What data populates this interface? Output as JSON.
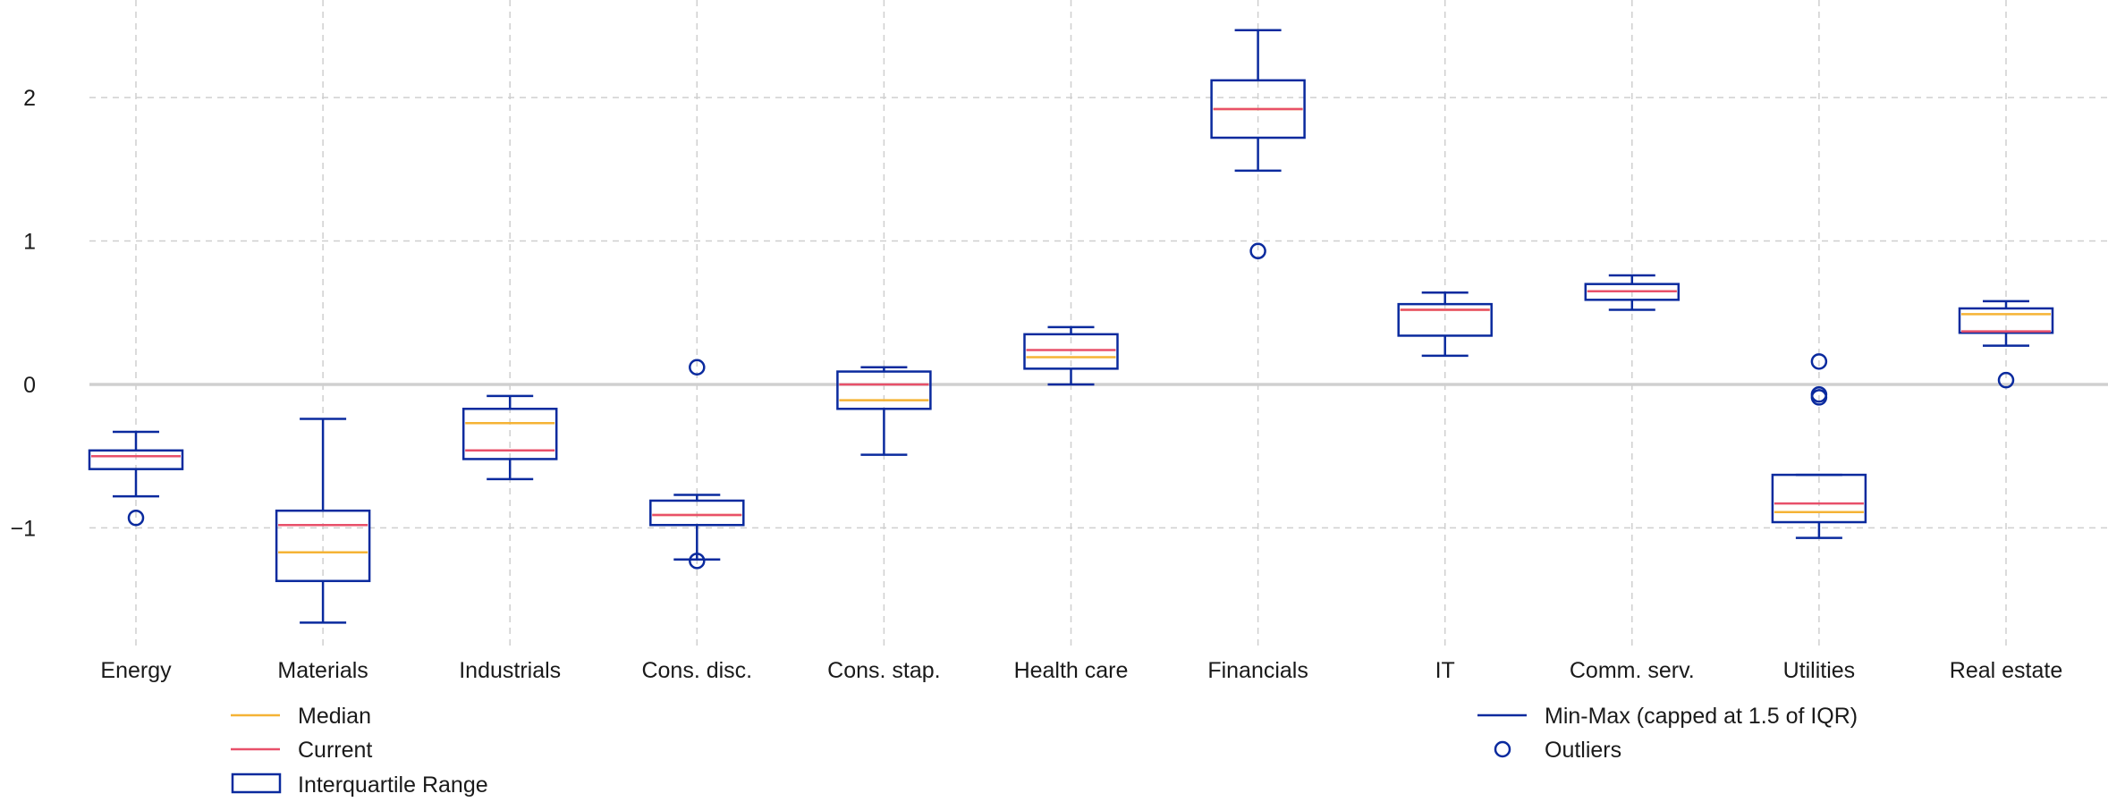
{
  "colors": {
    "box": "#0a2a9e",
    "median": "#f5b335",
    "current": "#e8506a",
    "grid": "#cfcfcf",
    "zero_line": "#d0d0d0",
    "text": "#1a1a1a"
  },
  "legend": {
    "median": "Median",
    "current": "Current",
    "iqr": "Interquartile Range",
    "whisker": "Min-Max (capped at 1.5 of IQR)",
    "outliers": "Outliers"
  },
  "chart_data": {
    "type": "box",
    "title": "",
    "xlabel": "",
    "ylabel": "",
    "ylim": [
      -1.82,
      2.68
    ],
    "yticks": [
      -1,
      0,
      1,
      2
    ],
    "ytick_labels": [
      "−1",
      "0",
      "1",
      "2"
    ],
    "grid": true,
    "legend_position": "bottom",
    "categories": [
      "Energy",
      "Materials",
      "Industrials",
      "Cons. disc.",
      "Cons. stap.",
      "Health care",
      "Financials",
      "IT",
      "Comm. serv.",
      "Utilities",
      "Real estate"
    ],
    "boxes": [
      {
        "category": "Energy",
        "whisker_low": -0.78,
        "q1": -0.59,
        "median": -0.5,
        "q3": -0.46,
        "whisker_high": -0.33,
        "current": -0.5,
        "outliers": [
          -0.93
        ]
      },
      {
        "category": "Materials",
        "whisker_low": -1.66,
        "q1": -1.37,
        "median": -1.17,
        "q3": -0.88,
        "whisker_high": -0.24,
        "current": -0.98,
        "outliers": []
      },
      {
        "category": "Industrials",
        "whisker_low": -0.66,
        "q1": -0.52,
        "median": -0.27,
        "q3": -0.17,
        "whisker_high": -0.08,
        "current": -0.46,
        "outliers": []
      },
      {
        "category": "Cons. disc.",
        "whisker_low": -1.22,
        "q1": -0.98,
        "median": -0.91,
        "q3": -0.81,
        "whisker_high": -0.77,
        "current": -0.91,
        "outliers": [
          0.12,
          -1.23
        ]
      },
      {
        "category": "Cons. stap.",
        "whisker_low": -0.49,
        "q1": -0.17,
        "median": -0.11,
        "q3": 0.09,
        "whisker_high": 0.12,
        "current": 0.0,
        "outliers": []
      },
      {
        "category": "Health care",
        "whisker_low": 0.0,
        "q1": 0.11,
        "median": 0.19,
        "q3": 0.35,
        "whisker_high": 0.4,
        "current": 0.24,
        "outliers": []
      },
      {
        "category": "Financials",
        "whisker_low": 1.49,
        "q1": 1.72,
        "median": 1.92,
        "q3": 2.12,
        "whisker_high": 2.47,
        "current": 1.92,
        "outliers": [
          0.93
        ]
      },
      {
        "category": "IT",
        "whisker_low": 0.2,
        "q1": 0.34,
        "median": 0.52,
        "q3": 0.56,
        "whisker_high": 0.64,
        "current": 0.52,
        "outliers": []
      },
      {
        "category": "Comm. serv.",
        "whisker_low": 0.52,
        "q1": 0.59,
        "median": 0.65,
        "q3": 0.7,
        "whisker_high": 0.76,
        "current": 0.65,
        "outliers": []
      },
      {
        "category": "Utilities",
        "whisker_low": -1.07,
        "q1": -0.96,
        "median": -0.89,
        "q3": -0.63,
        "whisker_high": -0.63,
        "current": -0.83,
        "outliers": [
          0.16,
          -0.07,
          -0.09
        ]
      },
      {
        "category": "Real estate",
        "whisker_low": 0.27,
        "q1": 0.36,
        "median": 0.49,
        "q3": 0.53,
        "whisker_high": 0.58,
        "current": 0.37,
        "outliers": [
          0.03
        ]
      }
    ]
  }
}
